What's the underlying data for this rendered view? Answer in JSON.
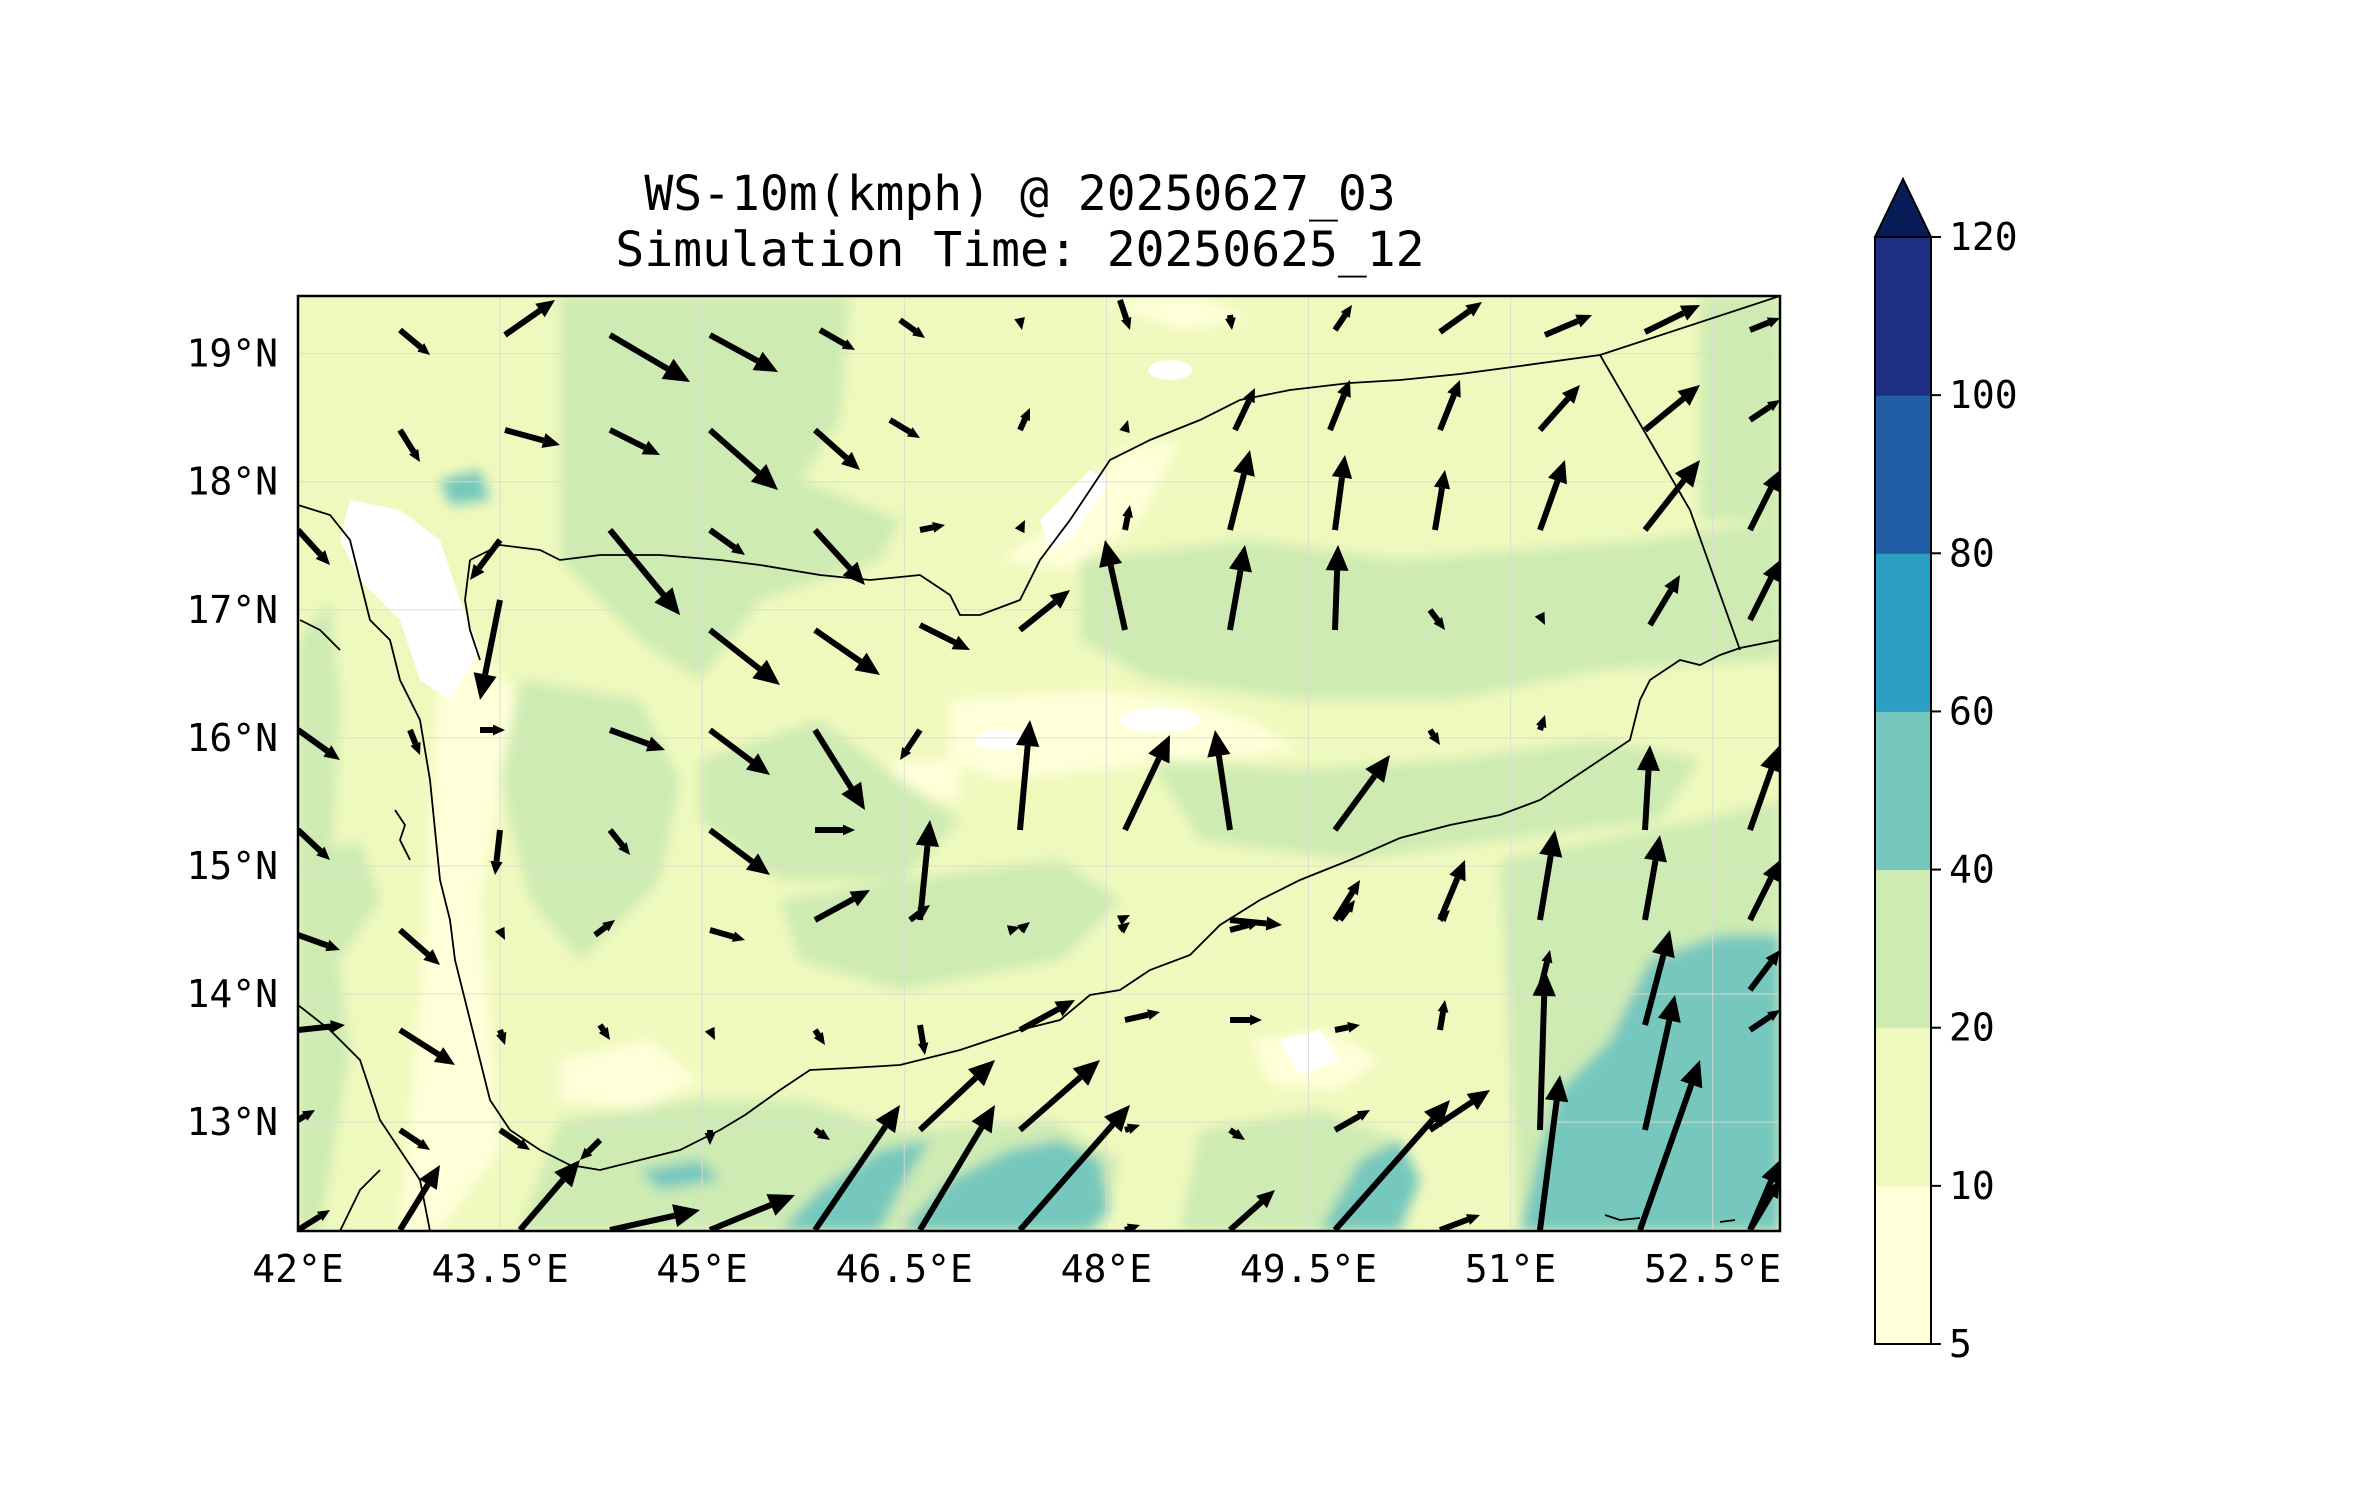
{
  "figure": {
    "title_line1": "WS-10m(kmph) @ 20250627_03",
    "title_line2": "Simulation Time: 20250625_12"
  },
  "map": {
    "lon_range": [
      42.0,
      53.0
    ],
    "lat_range": [
      12.15,
      19.45
    ],
    "lon_ticks": [
      42,
      43.5,
      45,
      46.5,
      48,
      49.5,
      51,
      52.5
    ],
    "lon_tick_labels": [
      "42°E",
      "43.5°E",
      "45°E",
      "46.5°E",
      "48°E",
      "49.5°E",
      "51°E",
      "52.5°E"
    ],
    "lat_ticks": [
      19,
      18,
      17,
      16,
      15,
      14,
      13
    ],
    "lat_tick_labels": [
      "19°N",
      "18°N",
      "17°N",
      "16°N",
      "15°N",
      "14°N",
      "13°N"
    ],
    "gridlines": true,
    "field": "10 m wind speed (kmph)",
    "wind_vectors": "quiver arrows"
  },
  "colorbar": {
    "levels": [
      5,
      10,
      20,
      40,
      60,
      80,
      100,
      120
    ],
    "tick_labels": [
      "120",
      "100",
      "80",
      "60",
      "40",
      "20",
      "10",
      "5"
    ],
    "colors": [
      "#ffffd9",
      "#eff9bd",
      "#cdebb3",
      "#76c7be",
      "#2ba0c2",
      "#225ea8",
      "#1d2e83"
    ],
    "extend": "max",
    "extend_color": "#081d58"
  },
  "colors": {
    "land_mid": "#eff9bd",
    "land_green": "#cdebb3",
    "strong": "#76c7be",
    "coast": "#000000",
    "arrow": "#000000"
  }
}
